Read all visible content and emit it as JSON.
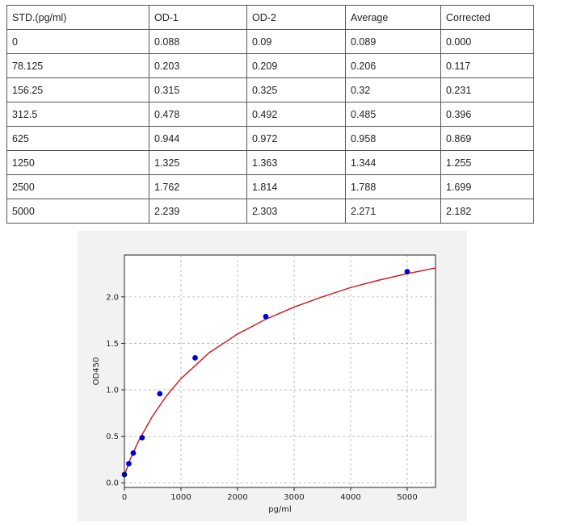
{
  "table": {
    "headers": [
      "STD.(pg/ml)",
      "OD-1",
      "OD-2",
      "Average",
      "Corrected"
    ],
    "rows": [
      [
        "0",
        "0.088",
        "0.09",
        "0.089",
        "0.000"
      ],
      [
        "78.125",
        "0.203",
        "0.209",
        "0.206",
        "0.117"
      ],
      [
        "156.25",
        "0.315",
        "0.325",
        "0.32",
        "0.231"
      ],
      [
        "312.5",
        "0.478",
        "0.492",
        "0.485",
        "0.396"
      ],
      [
        "625",
        "0.944",
        "0.972",
        "0.958",
        "0.869"
      ],
      [
        "1250",
        "1.325",
        "1.363",
        "1.344",
        "1.255"
      ],
      [
        "2500",
        "1.762",
        "1.814",
        "1.788",
        "1.699"
      ],
      [
        "5000",
        "2.239",
        "2.303",
        "2.271",
        "2.182"
      ]
    ]
  },
  "chart_data": {
    "type": "scatter",
    "title": "",
    "xlabel": "pg/ml",
    "ylabel": "OD450",
    "xlim": [
      0,
      5500
    ],
    "ylim": [
      -0.05,
      2.45
    ],
    "x_ticks": [
      "0",
      "1000",
      "2000",
      "3000",
      "4000",
      "5000"
    ],
    "y_ticks": [
      "0.0",
      "0.5",
      "1.0",
      "1.5",
      "2.0"
    ],
    "grid": true,
    "series": [
      {
        "kind": "points",
        "color": "#0000cc",
        "x": [
          0,
          78.125,
          156.25,
          312.5,
          625,
          1250,
          2500,
          5000
        ],
        "y": [
          0.089,
          0.206,
          0.32,
          0.485,
          0.958,
          1.344,
          1.788,
          2.271
        ]
      },
      {
        "kind": "fit-curve",
        "color": "#cc2222",
        "x": [
          0,
          100,
          250,
          500,
          750,
          1000,
          1500,
          2000,
          2500,
          3000,
          3500,
          4000,
          4500,
          5000,
          5500
        ],
        "y": [
          0.08,
          0.25,
          0.45,
          0.72,
          0.94,
          1.12,
          1.4,
          1.6,
          1.76,
          1.89,
          2.0,
          2.1,
          2.18,
          2.25,
          2.31
        ]
      }
    ]
  }
}
